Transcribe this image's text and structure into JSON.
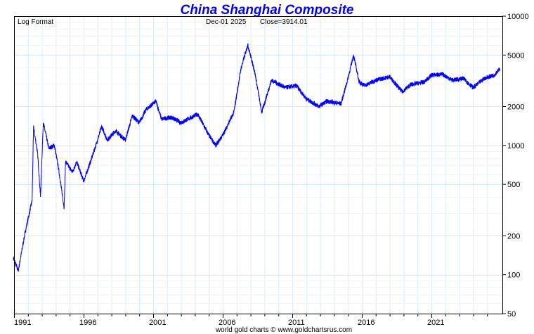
{
  "chart_data": {
    "type": "line",
    "title": "China Shanghai Composite",
    "scale_label": "Log Format",
    "last_date": "Dec-01  2025",
    "last_close": "Close=3914.01",
    "footer": "world gold charts © www.goldchartsrus.com",
    "xlabel": "",
    "ylabel": "",
    "xlim": [
      1991,
      2026.1
    ],
    "ylim": [
      50,
      10000
    ],
    "y_scale": "log",
    "grid": true,
    "x_tick_labels": [
      "1991",
      "1996",
      "2001",
      "2006",
      "2011",
      "2016",
      "2021"
    ],
    "y_tick_labels": [
      "10000",
      "5000",
      "2000",
      "1000",
      "500",
      "200",
      "100",
      "50"
    ],
    "series": [
      {
        "name": "Shanghai Composite",
        "color": "#0000ff",
        "x": [
          1990.95,
          1991.3,
          1991.8,
          1992.3,
          1992.4,
          1992.7,
          1992.9,
          1993.1,
          1993.5,
          1993.9,
          1994.2,
          1994.6,
          1994.7,
          1995.2,
          1995.5,
          1996.0,
          1996.5,
          1996.9,
          1997.3,
          1997.7,
          1998.3,
          1999.0,
          1999.5,
          2000.0,
          2000.5,
          2001.2,
          2001.6,
          2002.3,
          2003.0,
          2004.2,
          2005.0,
          2005.5,
          2006.0,
          2006.8,
          2007.3,
          2007.8,
          2008.3,
          2008.8,
          2009.5,
          2010.5,
          2011.3,
          2012.0,
          2012.9,
          2013.5,
          2014.5,
          2015.0,
          2015.4,
          2015.8,
          2016.2,
          2017.0,
          2018.0,
          2018.9,
          2019.5,
          2020.5,
          2021.0,
          2021.8,
          2022.5,
          2023.3,
          2024.0,
          2024.8,
          2025.5,
          2025.92
        ],
        "values": [
          135,
          107,
          214,
          376,
          1400,
          850,
          400,
          1500,
          950,
          1000,
          660,
          330,
          750,
          620,
          750,
          530,
          750,
          1020,
          1400,
          1100,
          1300,
          1100,
          1700,
          1500,
          1900,
          2200,
          1600,
          1650,
          1500,
          1750,
          1200,
          1000,
          1200,
          1800,
          3900,
          6000,
          3700,
          1800,
          3200,
          2800,
          2900,
          2300,
          2000,
          2200,
          2100,
          3300,
          5000,
          3100,
          2900,
          3200,
          3400,
          2600,
          2950,
          3100,
          3500,
          3550,
          3200,
          3300,
          2800,
          3300,
          3500,
          3914
        ]
      }
    ]
  }
}
